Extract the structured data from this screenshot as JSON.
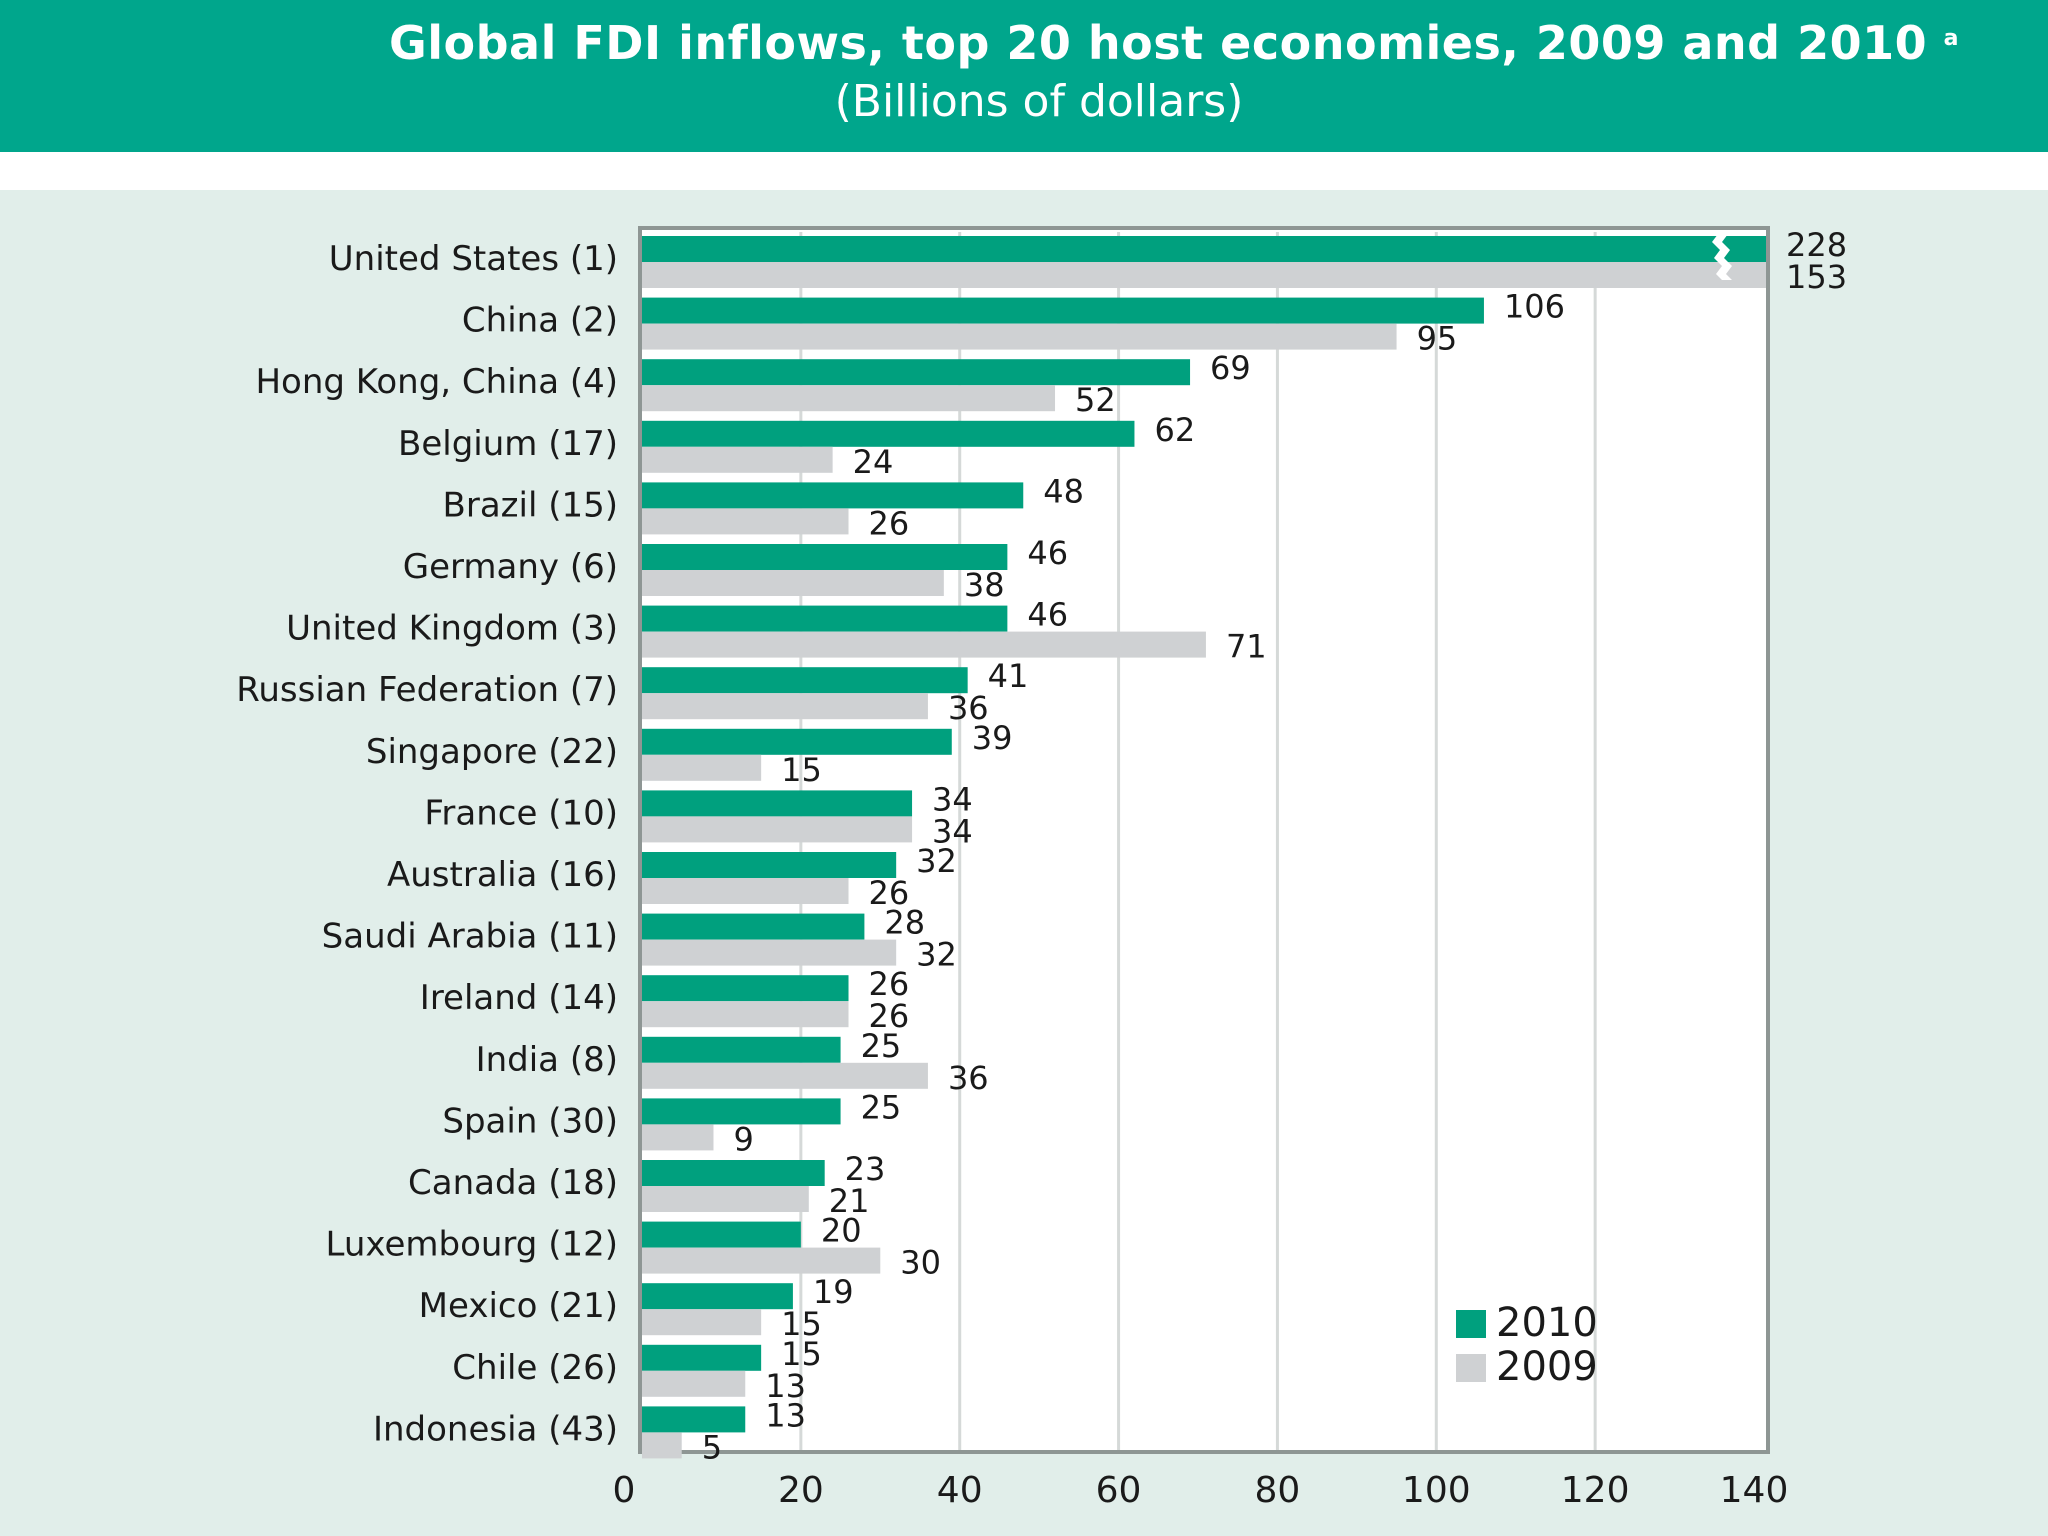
{
  "header": {
    "title": "Global FDI inflows, top 20 host economies, 2009 and 2010",
    "title_marker": "a",
    "subtitle": "(Billions of dollars)",
    "background_color": "#00a68c"
  },
  "colors": {
    "series_2010": "#00a07e",
    "series_2009": "#cfd1d3",
    "panel_background": "#e1eeea",
    "plot_background": "#ffffff",
    "gridline": "#d5d9d8"
  },
  "chart_data": {
    "type": "bar",
    "orientation": "horizontal",
    "title": "Global FDI inflows, top 20 host economies, 2009 and 2010",
    "subtitle": "(Billions of dollars)",
    "categories": [
      "United States (1)",
      "China (2)",
      "Hong Kong, China (4)",
      "Belgium (17)",
      "Brazil (15)",
      "Germany (6)",
      "United Kingdom (3)",
      "Russian Federation (7)",
      "Singapore (22)",
      "France (10)",
      "Australia (16)",
      "Saudi Arabia (11)",
      "Ireland (14)",
      "India (8)",
      "Spain (30)",
      "Canada (18)",
      "Luxembourg (12)",
      "Mexico (21)",
      "Chile (26)",
      "Indonesia (43)"
    ],
    "series": [
      {
        "name": "2010",
        "color": "#00a07e",
        "values": [
          228,
          106,
          69,
          62,
          48,
          46,
          46,
          41,
          39,
          34,
          32,
          28,
          26,
          25,
          25,
          23,
          20,
          19,
          15,
          13
        ]
      },
      {
        "name": "2009",
        "color": "#cfd1d3",
        "values": [
          153,
          95,
          52,
          24,
          26,
          38,
          71,
          36,
          15,
          34,
          26,
          32,
          26,
          36,
          9,
          21,
          30,
          15,
          13,
          5
        ]
      }
    ],
    "xlim": [
      0,
      140
    ],
    "xticks": [
      0,
      20,
      40,
      60,
      80,
      100,
      120,
      140
    ],
    "axis_break": "United States bars are truncated with a break mark at the right edge",
    "grid": true,
    "legend": {
      "position": "bottom-right",
      "entries": [
        "2010",
        "2009"
      ]
    },
    "xlabel": "",
    "ylabel": ""
  }
}
